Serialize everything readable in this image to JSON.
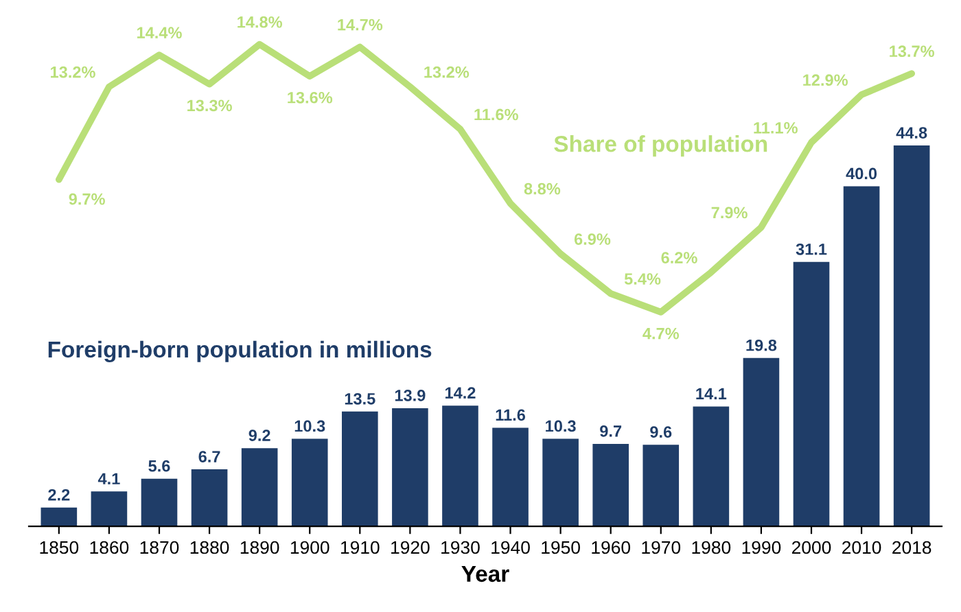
{
  "chart_data": {
    "type": "bar",
    "xlabel": "Year",
    "categories": [
      "1850",
      "1860",
      "1870",
      "1880",
      "1890",
      "1900",
      "1910",
      "1920",
      "1930",
      "1940",
      "1950",
      "1960",
      "1970",
      "1980",
      "1990",
      "2000",
      "2010",
      "2018"
    ],
    "series": [
      {
        "name": "Foreign-born population in millions",
        "color": "#1f3d68",
        "values": [
          2.2,
          4.1,
          5.6,
          6.7,
          9.2,
          10.3,
          13.5,
          13.9,
          14.2,
          11.6,
          10.3,
          9.7,
          9.6,
          14.1,
          19.8,
          31.1,
          40.0,
          44.8
        ],
        "value_labels": [
          "2.2",
          "4.1",
          "5.6",
          "6.7",
          "9.2",
          "10.3",
          "13.5",
          "13.9",
          "14.2",
          "11.6",
          "10.3",
          "9.7",
          "9.6",
          "14.1",
          "19.8",
          "31.1",
          "40.0",
          "44.8"
        ]
      },
      {
        "name": "Share of population",
        "type": "line",
        "axis": "y2",
        "color": "#b9df78",
        "values": [
          9.7,
          13.2,
          14.4,
          13.3,
          14.8,
          13.6,
          14.7,
          13.2,
          11.6,
          8.8,
          6.9,
          5.4,
          4.7,
          6.2,
          7.9,
          11.1,
          12.9,
          13.7
        ],
        "value_labels": [
          "9.7%",
          "13.2%",
          "14.4%",
          "13.3%",
          "14.8%",
          "13.6%",
          "14.7%",
          "13.2%",
          "11.6%",
          "8.8%",
          "6.9%",
          "5.4%",
          "4.7%",
          "6.2%",
          "7.9%",
          "11.1%",
          "12.9%",
          "13.7%"
        ]
      }
    ],
    "tick_labels": "x"
  }
}
